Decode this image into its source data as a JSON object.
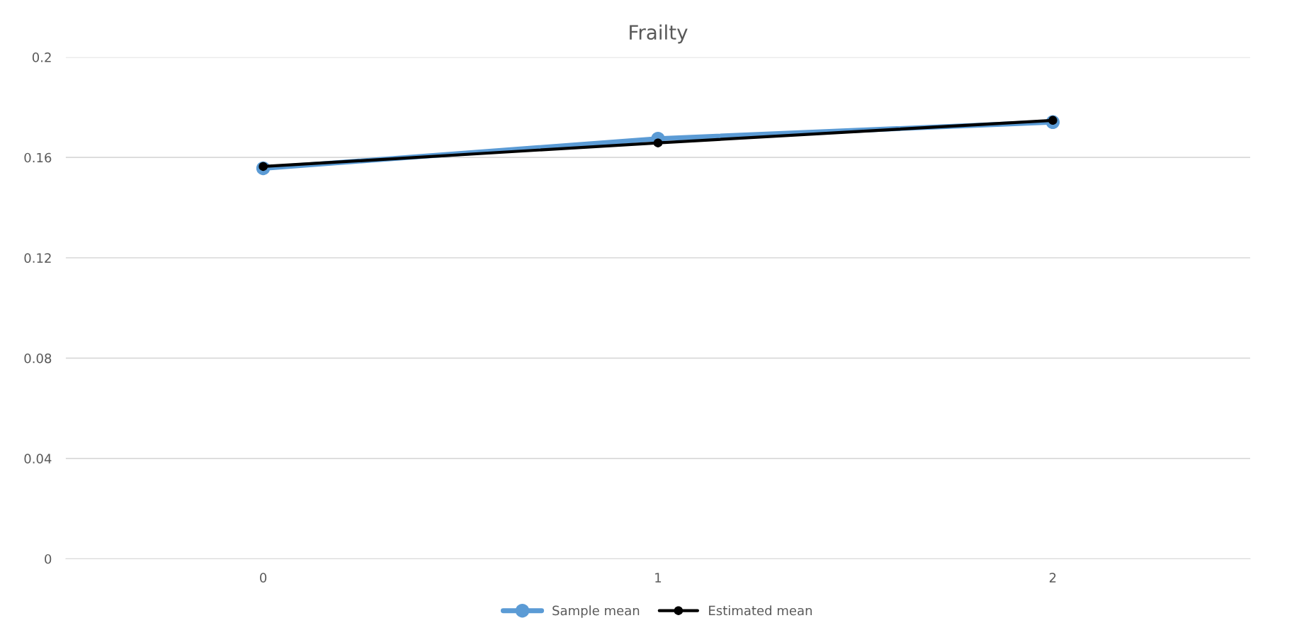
{
  "chart_data": {
    "type": "line",
    "title": "Frailty",
    "categories": [
      "0",
      "1",
      "2"
    ],
    "series": [
      {
        "name": "Sample mean",
        "color": "#5b9bd5",
        "values": [
          0.1557,
          0.1675,
          0.1741
        ]
      },
      {
        "name": "Estimated mean",
        "color": "#000000",
        "values": [
          0.1564,
          0.1658,
          0.1748
        ]
      }
    ],
    "ylim": [
      0,
      0.2
    ],
    "yticks": [
      0,
      0.04,
      0.08,
      0.12,
      0.16,
      0.2
    ],
    "grid": "y",
    "legend": "bottom",
    "marker": "circle",
    "line_style": "solid"
  }
}
